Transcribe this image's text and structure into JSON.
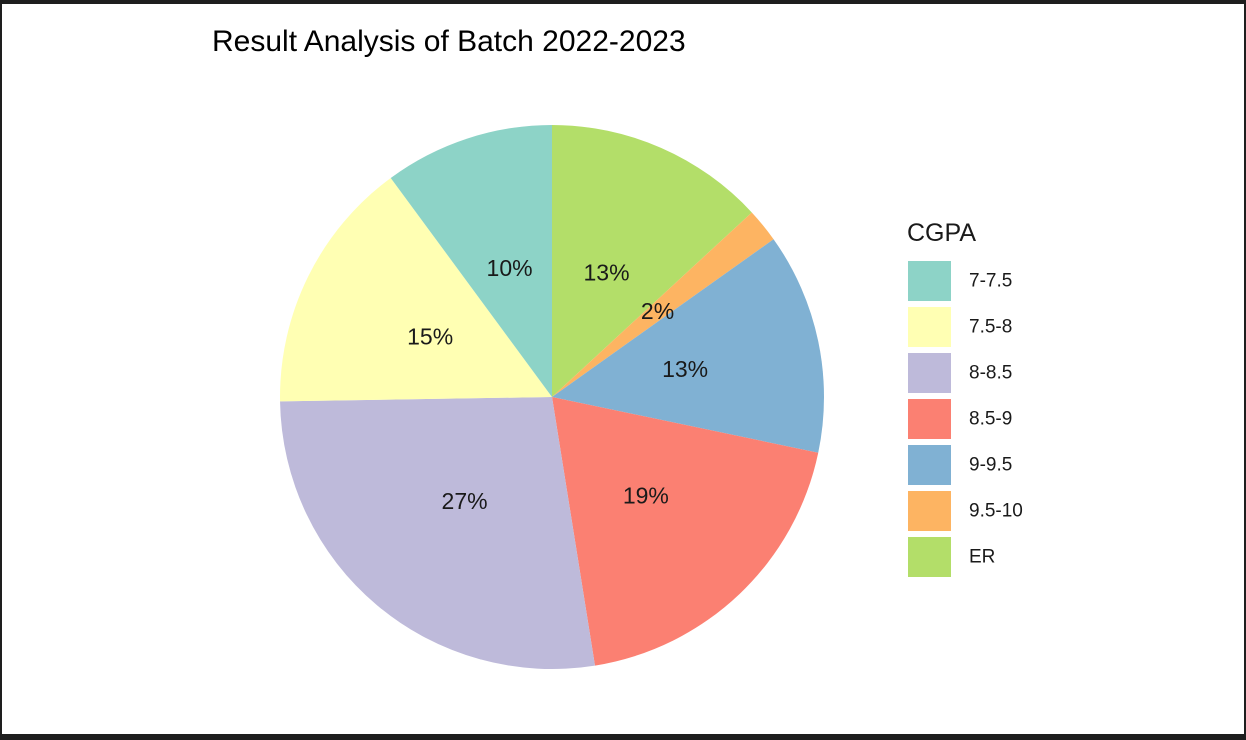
{
  "chart_data": {
    "type": "pie",
    "title": "Result Analysis of Batch 2022-2023",
    "legend_title": "CGPA",
    "legend_position": "right",
    "slices": [
      {
        "label": "ER",
        "value": 13,
        "pct_label": "13%",
        "color": "#B3DE69"
      },
      {
        "label": "9.5-10",
        "value": 2,
        "pct_label": "2%",
        "color": "#FDB462"
      },
      {
        "label": "9-9.5",
        "value": 13,
        "pct_label": "13%",
        "color": "#80B1D3"
      },
      {
        "label": "8.5-9",
        "value": 19,
        "pct_label": "19%",
        "color": "#FB8072"
      },
      {
        "label": "8-8.5",
        "value": 27,
        "pct_label": "27%",
        "color": "#BEBADA"
      },
      {
        "label": "7.5-8",
        "value": 15,
        "pct_label": "15%",
        "color": "#FFFFB3"
      },
      {
        "label": "7-7.5",
        "value": 10,
        "pct_label": "10%",
        "color": "#8DD3C7"
      }
    ],
    "legend_order": [
      "7-7.5",
      "7.5-8",
      "8-8.5",
      "8.5-9",
      "9-9.5",
      "9.5-10",
      "ER"
    ]
  }
}
